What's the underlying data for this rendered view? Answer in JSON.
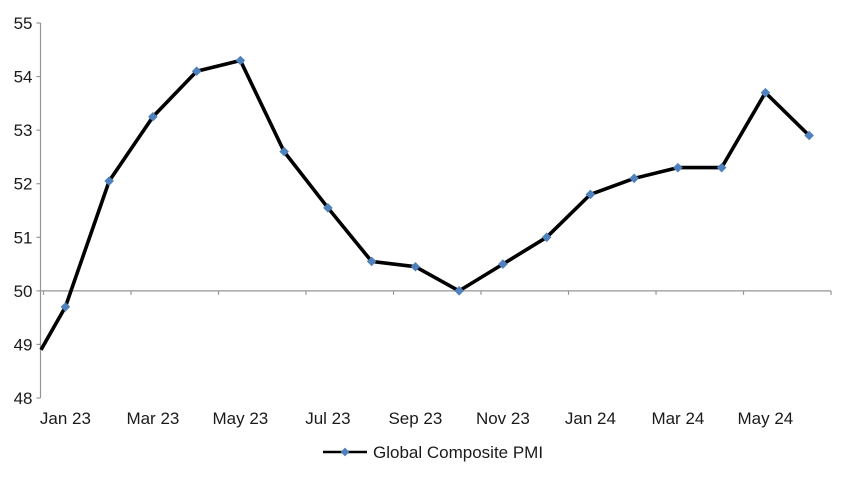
{
  "chart_data": {
    "type": "line",
    "title": "",
    "categories": [
      "Jan 23",
      "Feb 23",
      "Mar 23",
      "Apr 23",
      "May 23",
      "Jun 23",
      "Jul 23",
      "Aug 23",
      "Sep 23",
      "Oct 23",
      "Nov 23",
      "Dec 23",
      "Jan 24",
      "Feb 24",
      "Mar 24",
      "Apr 24",
      "May 24",
      "Jun 24"
    ],
    "series": [
      {
        "name": "Global Composite PMI",
        "values": [
          49.7,
          52.05,
          53.25,
          54.1,
          54.3,
          52.6,
          51.55,
          50.55,
          50.45,
          50.0,
          50.5,
          51.0,
          51.8,
          52.1,
          52.3,
          52.3,
          53.7,
          52.9
        ],
        "line_color": "#000000",
        "marker": "diamond",
        "marker_color": "#4F81BD",
        "line_enters_plot_at_left_axis_value": 48.9
      }
    ],
    "x_axis": {
      "tick_labels": [
        "Jan 23",
        "Mar 23",
        "May 23",
        "Jul 23",
        "Sep 23",
        "Nov 23",
        "Jan 24",
        "Mar 24",
        "May 24"
      ],
      "labeled_every_n_categories": 2,
      "axis_line_at_value": 50
    },
    "y_axis": {
      "min": 48,
      "max": 55,
      "step": 1,
      "ticks": [
        48,
        49,
        50,
        51,
        52,
        53,
        54,
        55
      ]
    },
    "legend": {
      "position": "bottom-center",
      "label": "Global Composite PMI"
    },
    "grid": false,
    "colors": {
      "axis": "#969696",
      "text": "#1a1a1a",
      "background": "#FFFFFF"
    }
  }
}
